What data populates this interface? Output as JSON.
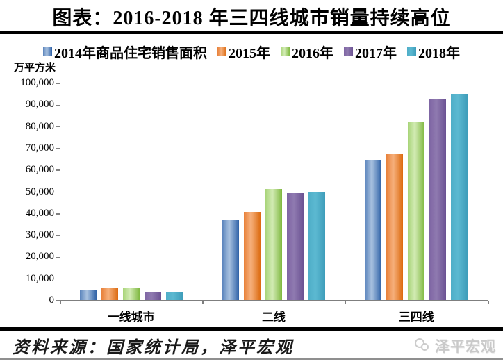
{
  "title": "图表：2016-2018 年三四线城市销量持续高位",
  "footer": {
    "source_text": "资料来源：国家统计局，泽平宏观",
    "watermark_text": "泽平宏观"
  },
  "chart_data": {
    "type": "bar",
    "title": "2016-2018 年三四线城市销量持续高位",
    "unit_label": "万平方米",
    "categories": [
      "一线城市",
      "二线",
      "三四线"
    ],
    "series": [
      {
        "name": "2014年商品住宅销售面积",
        "color": "#4F81BD",
        "gradient": {
          "start": "#5B84BC",
          "light": "#A9C2E0",
          "dark": "#2F62A7"
        },
        "values": [
          4900,
          36700,
          64400
        ]
      },
      {
        "name": "2015年",
        "color": "#ED7D31",
        "gradient": {
          "start": "#E8813A",
          "light": "#F6B07C",
          "dark": "#DC6A0F"
        },
        "values": [
          5400,
          40500,
          67200
        ]
      },
      {
        "name": "2016年",
        "color": "#9BBB59",
        "gradient": {
          "start": "#A8D478",
          "light": "#D2EBB4",
          "dark": "#7FB840"
        },
        "values": [
          5500,
          51000,
          81900
        ]
      },
      {
        "name": "2017年",
        "color": "#8064A2",
        "gradient": {
          "start": "#7E65A3",
          "light": "#8F7AB0",
          "dark": "#6B5292"
        },
        "values": [
          3900,
          49300,
          92200
        ]
      },
      {
        "name": "2018年",
        "color": "#4BACC6",
        "gradient": {
          "start": "#4FAEC8",
          "light": "#5CB9D1",
          "dark": "#3E9DBA"
        },
        "values": [
          3600,
          50000,
          94800
        ]
      }
    ],
    "ylim": [
      0,
      100000
    ],
    "ytick_step": 10000,
    "ytick_labels": [
      "0",
      "10,000",
      "20,000",
      "30,000",
      "40,000",
      "50,000",
      "60,000",
      "70,000",
      "80,000",
      "90,000",
      "100,000"
    ],
    "grid": false,
    "legend_position": "top",
    "axis_color": "#7f7f7f"
  }
}
